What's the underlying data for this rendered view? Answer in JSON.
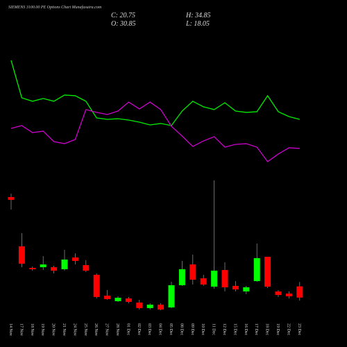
{
  "chart_data": {
    "type": "candlestick",
    "title": "SIEMENS 3100.00  PE Options  Chart Munafasutra.com",
    "annotations": [
      "C: 20.75",
      "H: 34.85",
      "O: 30.85",
      "L: 18.05"
    ],
    "categories": [
      "14 Nov",
      "17 Nov",
      "18 Nov",
      "19 Nov",
      "20 Nov",
      "21 Nov",
      "24 Nov",
      "25 Nov",
      "26 Nov",
      "27 Nov",
      "28 Nov",
      "01 Dec",
      "02 Dec",
      "03 Dec",
      "04 Dec",
      "05 Dec",
      "08 Dec",
      "09 Dec",
      "10 Dec",
      "11 Dec",
      "12 Dec",
      "15 Dec",
      "16 Dec",
      "17 Dec",
      "18 Dec",
      "19 Dec",
      "22 Dec",
      "23 Dec"
    ],
    "open": [
      111.3,
      66.9,
      47.5,
      48.1,
      48.1,
      46.3,
      56.9,
      50,
      41.3,
      22.5,
      17.5,
      20,
      16.3,
      11.3,
      14.4,
      11.9,
      31.9,
      50.6,
      38.1,
      30.6,
      45.6,
      31.3,
      26.3,
      35.6,
      57.5,
      26.3,
      24.4,
      30.85
    ],
    "high": [
      114.4,
      78.8,
      48.8,
      58.1,
      49.4,
      63.8,
      60.6,
      54.4,
      42.5,
      27.5,
      21.9,
      21.3,
      18.8,
      15.6,
      15.6,
      35,
      53.8,
      59.4,
      41.3,
      126.3,
      52.5,
      35.6,
      31.3,
      69.4,
      57.5,
      27.5,
      26.3,
      34.85
    ],
    "low": [
      100,
      48.1,
      45,
      45.6,
      42.5,
      45,
      50.6,
      43.8,
      20,
      18.8,
      16.9,
      15.6,
      10,
      10,
      9.4,
      11.3,
      31.3,
      32.5,
      31.3,
      28.8,
      26.3,
      26.3,
      23.8,
      35,
      29.4,
      21.3,
      20,
      18.05
    ],
    "close": [
      108.8,
      51.3,
      46.3,
      50.6,
      45,
      55,
      53.8,
      45,
      21.3,
      19.4,
      20.6,
      16.9,
      11.3,
      14.4,
      10,
      31.9,
      46.3,
      36.9,
      32.5,
      45,
      30,
      28.1,
      30,
      56.3,
      30.6,
      23.1,
      21.9,
      20.75
    ],
    "up_color": "#00ff00",
    "down_color": "#ff0000",
    "ylim": [
      0,
      140
    ],
    "lines": [
      {
        "color": "#00ee00",
        "values": [
          95.6,
          61.9,
          58.8,
          61.3,
          58.8,
          64.4,
          63.8,
          58.8,
          43.8,
          42.5,
          43.1,
          41.9,
          40,
          37.5,
          38.8,
          36.9,
          50,
          58.8,
          53.8,
          51.3,
          57.5,
          50,
          48.8,
          49.4,
          63.8,
          49.4,
          45,
          42.5
        ]
      },
      {
        "color": "#cc00cc",
        "values": [
          34.4,
          36.9,
          30.6,
          31.9,
          22.5,
          20.6,
          24.4,
          51.3,
          48.8,
          46.9,
          50,
          58.1,
          51.9,
          58.1,
          51.3,
          36.3,
          27.5,
          18.1,
          23.1,
          26.9,
          17.5,
          20,
          20.6,
          17.5,
          4.4,
          11.3,
          16.9,
          16.3
        ]
      }
    ],
    "lines_ylim": [
      0,
      100
    ]
  }
}
